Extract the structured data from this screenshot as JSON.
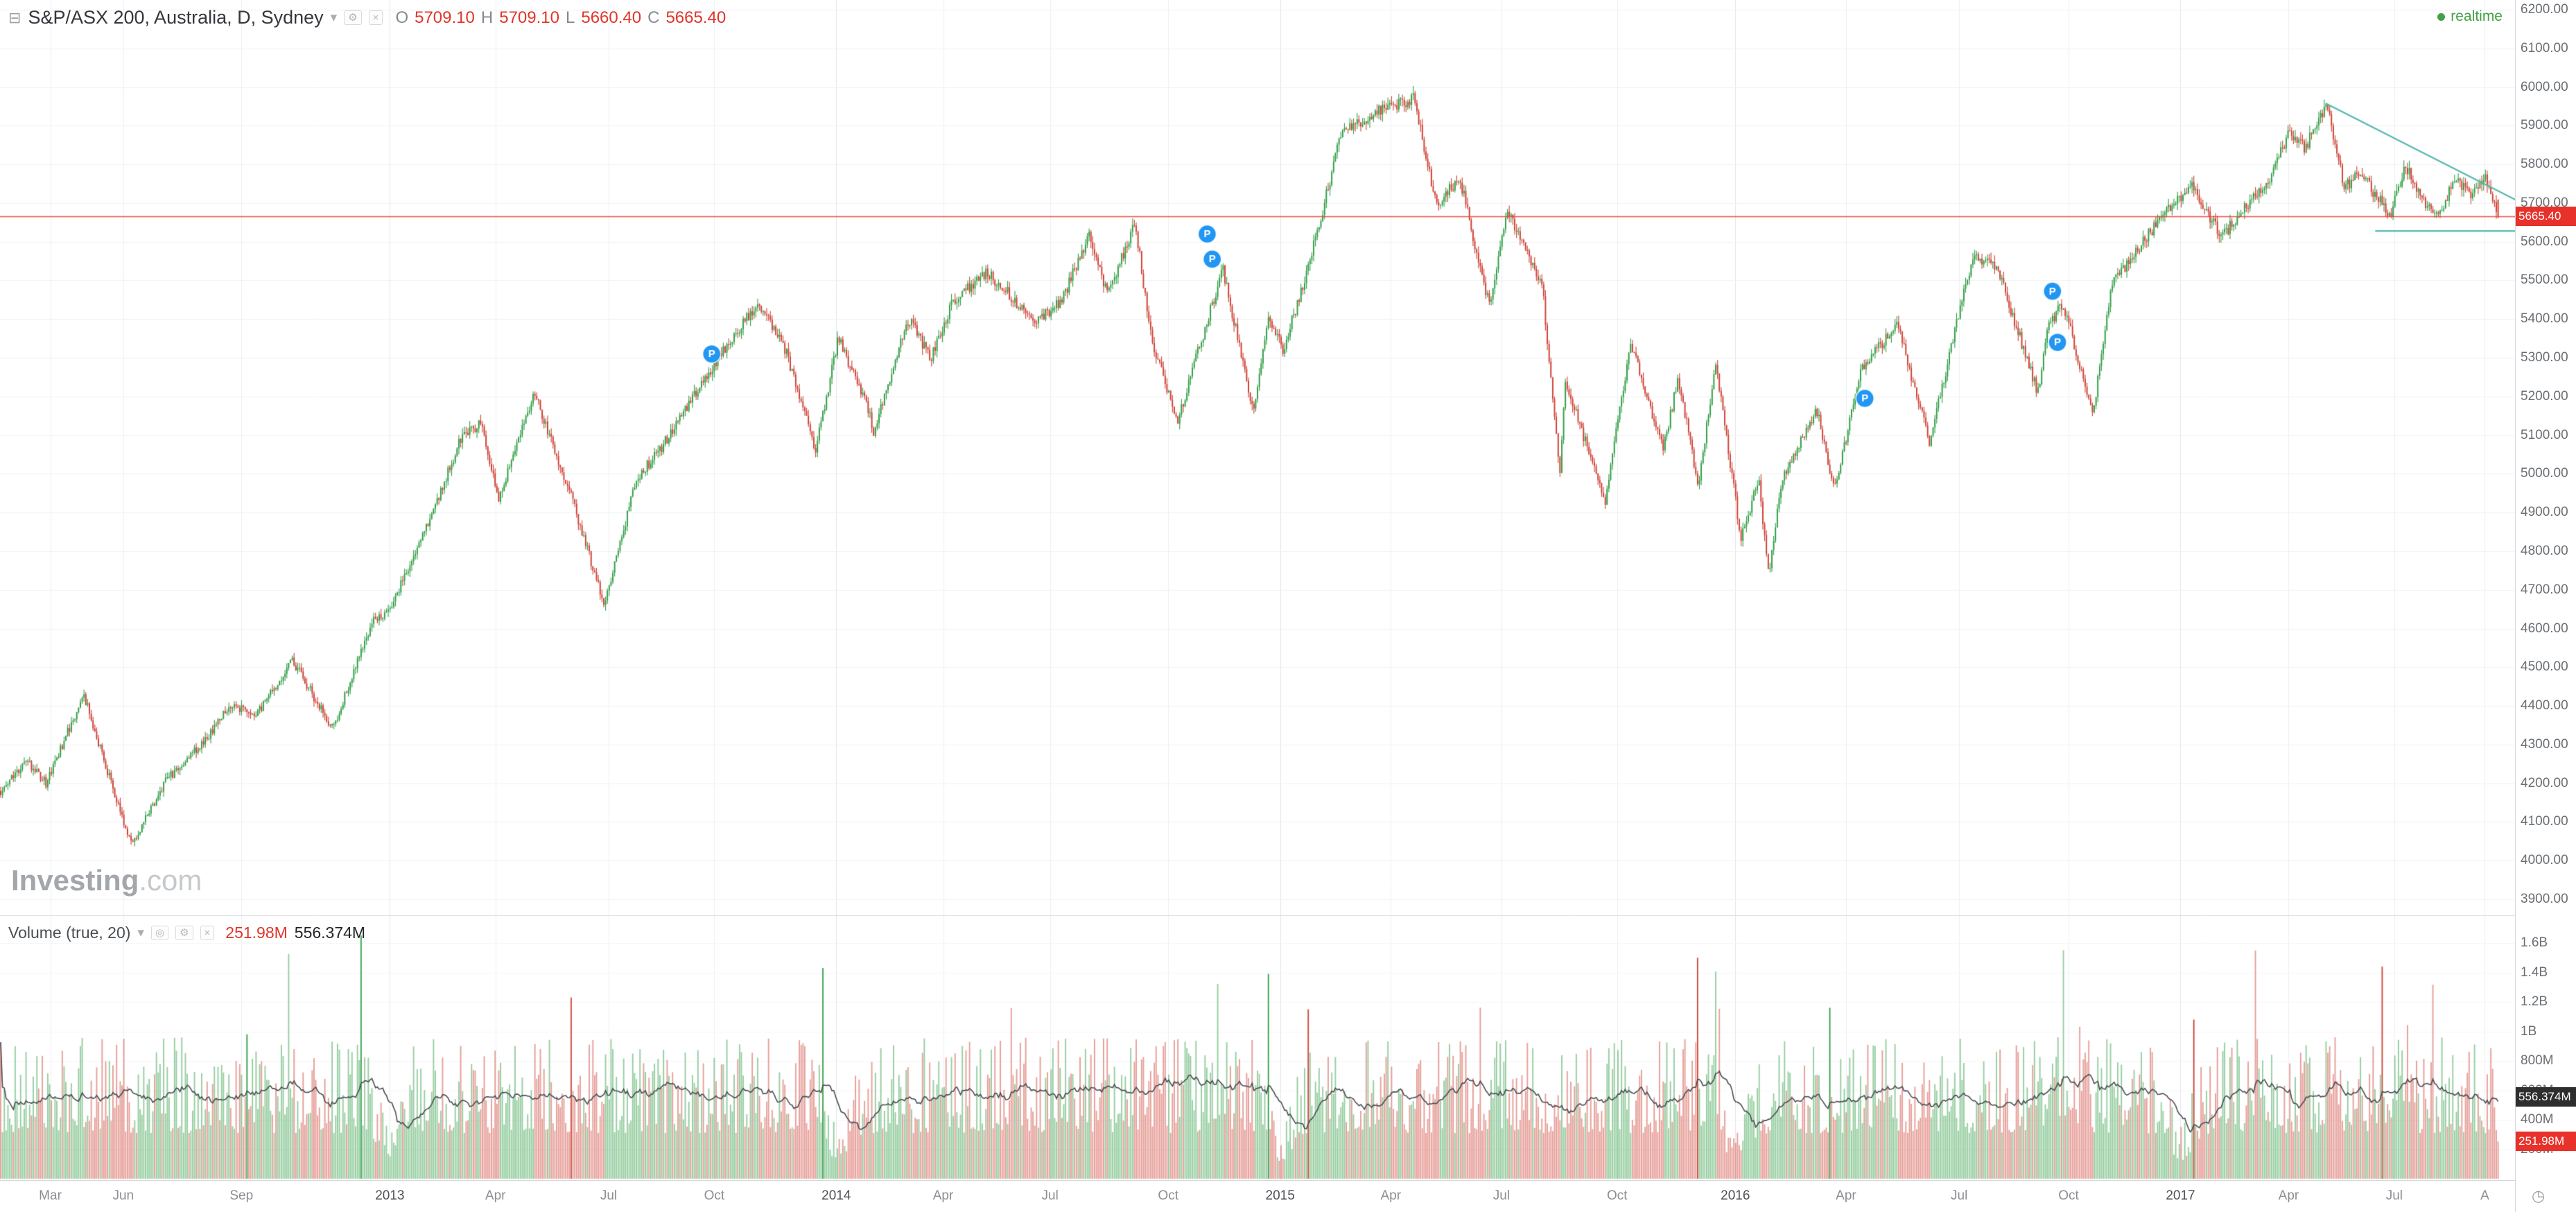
{
  "header": {
    "symbol_title": "S&P/ASX 200, Australia, D, Sydney",
    "ohlc": {
      "o_label": "O",
      "o_value": "5709.10",
      "h_label": "H",
      "h_value": "5709.10",
      "l_label": "L",
      "l_value": "5660.40",
      "c_label": "C",
      "c_value": "5665.40"
    },
    "realtime_label": "realtime"
  },
  "icons": {
    "collapse": "⊟",
    "caret": "▾",
    "gear": "⚙",
    "close": "×",
    "circle": "◎",
    "clock": "◷"
  },
  "watermark": {
    "bold": "Investing",
    "light": ".com"
  },
  "price_axis": {
    "tag": "5665.40",
    "ticks": [
      "6200.00",
      "6100.00",
      "6000.00",
      "5900.00",
      "5800.00",
      "5700.00",
      "5600.00",
      "5500.00",
      "5400.00",
      "5300.00",
      "5200.00",
      "5100.00",
      "5000.00",
      "4900.00",
      "4800.00",
      "4700.00",
      "4600.00",
      "4500.00",
      "4400.00",
      "4300.00",
      "4200.00",
      "4100.00",
      "4000.00",
      "3900.00"
    ]
  },
  "time_axis": {
    "ticks": [
      {
        "label": "Mar",
        "f": 0.02
      },
      {
        "label": "Jun",
        "f": 0.049
      },
      {
        "label": "Sep",
        "f": 0.096
      },
      {
        "label": "2013",
        "f": 0.155,
        "year": true
      },
      {
        "label": "Apr",
        "f": 0.197
      },
      {
        "label": "Jul",
        "f": 0.242
      },
      {
        "label": "Oct",
        "f": 0.284
      },
      {
        "label": "2014",
        "f": 0.3325,
        "year": true
      },
      {
        "label": "Apr",
        "f": 0.375
      },
      {
        "label": "Jul",
        "f": 0.4175
      },
      {
        "label": "Oct",
        "f": 0.4645
      },
      {
        "label": "2015",
        "f": 0.509,
        "year": true
      },
      {
        "label": "Apr",
        "f": 0.553
      },
      {
        "label": "Jul",
        "f": 0.597
      },
      {
        "label": "Oct",
        "f": 0.643
      },
      {
        "label": "2016",
        "f": 0.69,
        "year": true
      },
      {
        "label": "Apr",
        "f": 0.734
      },
      {
        "label": "Jul",
        "f": 0.779
      },
      {
        "label": "Oct",
        "f": 0.8225
      },
      {
        "label": "2017",
        "f": 0.867,
        "year": true
      },
      {
        "label": "Apr",
        "f": 0.91
      },
      {
        "label": "Jul",
        "f": 0.952
      },
      {
        "label": "A",
        "f": 0.988
      }
    ]
  },
  "volume_pane": {
    "legend": "Volume (true, 20)",
    "value_red": "251.98M",
    "value_dark": "556.374M",
    "axis_ticks": [
      {
        "label": "1.6B",
        "v": 1600
      },
      {
        "label": "1.4B",
        "v": 1400
      },
      {
        "label": "1.2B",
        "v": 1200
      },
      {
        "label": "1B",
        "v": 1000
      },
      {
        "label": "800M",
        "v": 800
      },
      {
        "label": "600M",
        "v": 600
      },
      {
        "label": "400M",
        "v": 400
      },
      {
        "label": "200M",
        "v": 200
      }
    ],
    "tag_dark": {
      "label": "556.374M",
      "v": 556.374
    },
    "tag_red": {
      "label": "251.98M",
      "v": 251.98
    }
  },
  "chart_data": {
    "type": "candlestick",
    "title": "S&P/ASX 200, Australia, Daily, Sydney",
    "x_range": [
      "Mar 2012",
      "Aug 2017"
    ],
    "price_range": [
      3900,
      6200
    ],
    "last_ohlc": {
      "open": 5709.1,
      "high": 5709.1,
      "low": 5660.4,
      "close": 5665.4
    },
    "price_line_level": 5665.4,
    "candle_count": 1380,
    "price_anchors": [
      [
        0.0,
        4180
      ],
      [
        0.01,
        4260
      ],
      [
        0.018,
        4200
      ],
      [
        0.033,
        4430
      ],
      [
        0.04,
        4280
      ],
      [
        0.052,
        4040
      ],
      [
        0.066,
        4210
      ],
      [
        0.08,
        4300
      ],
      [
        0.091,
        4400
      ],
      [
        0.102,
        4380
      ],
      [
        0.116,
        4520
      ],
      [
        0.132,
        4340
      ],
      [
        0.148,
        4620
      ],
      [
        0.155,
        4650
      ],
      [
        0.171,
        4890
      ],
      [
        0.183,
        5090
      ],
      [
        0.191,
        5130
      ],
      [
        0.198,
        4930
      ],
      [
        0.212,
        5210
      ],
      [
        0.226,
        4960
      ],
      [
        0.24,
        4660
      ],
      [
        0.253,
        4990
      ],
      [
        0.262,
        5060
      ],
      [
        0.28,
        5250
      ],
      [
        0.301,
        5440
      ],
      [
        0.312,
        5320
      ],
      [
        0.324,
        5060
      ],
      [
        0.333,
        5350
      ],
      [
        0.344,
        5190
      ],
      [
        0.347,
        5110
      ],
      [
        0.361,
        5400
      ],
      [
        0.37,
        5300
      ],
      [
        0.379,
        5450
      ],
      [
        0.392,
        5520
      ],
      [
        0.399,
        5480
      ],
      [
        0.411,
        5390
      ],
      [
        0.422,
        5450
      ],
      [
        0.433,
        5620
      ],
      [
        0.44,
        5460
      ],
      [
        0.451,
        5650
      ],
      [
        0.458,
        5330
      ],
      [
        0.468,
        5140
      ],
      [
        0.486,
        5530
      ],
      [
        0.498,
        5160
      ],
      [
        0.504,
        5400
      ],
      [
        0.51,
        5320
      ],
      [
        0.521,
        5560
      ],
      [
        0.533,
        5880
      ],
      [
        0.548,
        5940
      ],
      [
        0.562,
        5970
      ],
      [
        0.571,
        5690
      ],
      [
        0.58,
        5770
      ],
      [
        0.592,
        5430
      ],
      [
        0.599,
        5680
      ],
      [
        0.613,
        5480
      ],
      [
        0.62,
        5000
      ],
      [
        0.622,
        5240
      ],
      [
        0.638,
        4930
      ],
      [
        0.648,
        5340
      ],
      [
        0.661,
        5060
      ],
      [
        0.667,
        5250
      ],
      [
        0.675,
        4970
      ],
      [
        0.682,
        5290
      ],
      [
        0.692,
        4830
      ],
      [
        0.699,
        4990
      ],
      [
        0.703,
        4730
      ],
      [
        0.708,
        4980
      ],
      [
        0.722,
        5170
      ],
      [
        0.729,
        4960
      ],
      [
        0.74,
        5270
      ],
      [
        0.754,
        5390
      ],
      [
        0.767,
        5080
      ],
      [
        0.776,
        5340
      ],
      [
        0.784,
        5560
      ],
      [
        0.794,
        5530
      ],
      [
        0.81,
        5210
      ],
      [
        0.814,
        5380
      ],
      [
        0.82,
        5440
      ],
      [
        0.832,
        5160
      ],
      [
        0.839,
        5480
      ],
      [
        0.847,
        5560
      ],
      [
        0.859,
        5660
      ],
      [
        0.871,
        5750
      ],
      [
        0.883,
        5610
      ],
      [
        0.895,
        5710
      ],
      [
        0.902,
        5760
      ],
      [
        0.91,
        5880
      ],
      [
        0.916,
        5840
      ],
      [
        0.925,
        5950
      ],
      [
        0.932,
        5740
      ],
      [
        0.938,
        5780
      ],
      [
        0.95,
        5670
      ],
      [
        0.956,
        5800
      ],
      [
        0.962,
        5720
      ],
      [
        0.969,
        5660
      ],
      [
        0.976,
        5770
      ],
      [
        0.982,
        5720
      ],
      [
        0.988,
        5760
      ],
      [
        0.993,
        5665
      ]
    ],
    "markers": [
      {
        "f": 0.283,
        "p": 5310,
        "label": "P"
      },
      {
        "f": 0.48,
        "p": 5620,
        "label": "P"
      },
      {
        "f": 0.482,
        "p": 5555,
        "label": "P"
      },
      {
        "f": 0.7415,
        "p": 5195,
        "label": "P"
      },
      {
        "f": 0.8161,
        "p": 5472,
        "label": "P"
      },
      {
        "f": 0.8181,
        "p": 5340,
        "label": "P"
      }
    ],
    "trendlines": [
      {
        "f1": 0.9247,
        "p1": 5958,
        "f2": 1.002,
        "p2": 5706
      },
      {
        "f1": 0.9444,
        "p1": 5628,
        "f2": 1.002,
        "p2": 5628
      }
    ],
    "volume": {
      "base_m": 620,
      "max_m": 1600,
      "ma_period": 20,
      "last_bar_m": 251.98,
      "ma_last_m": 556.374,
      "year_break_fracs": [
        0.155,
        0.3325,
        0.509,
        0.69,
        0.867
      ],
      "spikes": [
        {
          "f": 0.098,
          "m": 980,
          "dir": "up"
        },
        {
          "f": 0.143,
          "m": 1650,
          "dir": "up"
        },
        {
          "f": 0.227,
          "m": 1230,
          "dir": "down"
        },
        {
          "f": 0.327,
          "m": 1430,
          "dir": "up"
        },
        {
          "f": 0.504,
          "m": 1390,
          "dir": "up"
        },
        {
          "f": 0.52,
          "m": 1150,
          "dir": "down"
        },
        {
          "f": 0.675,
          "m": 1500,
          "dir": "down"
        },
        {
          "f": 0.727,
          "m": 1160,
          "dir": "up"
        },
        {
          "f": 0.872,
          "m": 1080,
          "dir": "down"
        },
        {
          "f": 0.947,
          "m": 1440,
          "dir": "down"
        }
      ]
    }
  },
  "colors": {
    "up": "#2f9e44",
    "down": "#cf4034",
    "ma_line": "#4a4d52",
    "price_line": "#ef3b30",
    "tag_red": "#e8312a",
    "tag_dark": "#2e2e2e",
    "trendline": "#58b8b0",
    "marker": "#2196f3",
    "realtime": "#43a047",
    "legend_red": "#e0352b",
    "grid": "#f1f2f4",
    "grid_vert": "#edeff2",
    "grid_year": "#e3e5e9",
    "axis_text": "#6a6e73",
    "axis_border": "#d4d6d9"
  }
}
